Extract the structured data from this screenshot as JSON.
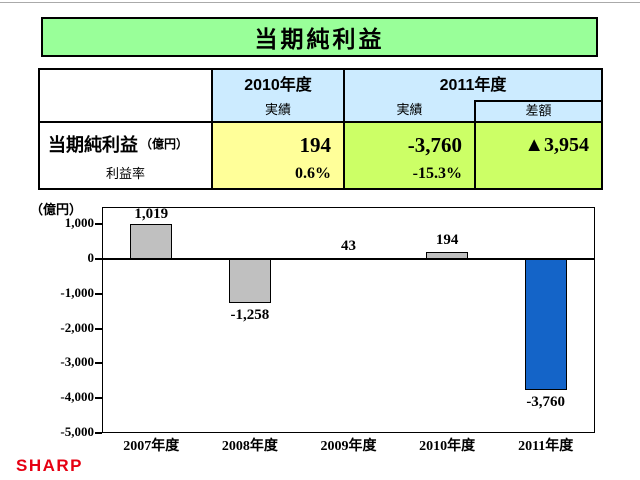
{
  "title": {
    "text": "当期純利益"
  },
  "table": {
    "columns": {
      "fy2010": {
        "year": "2010年度",
        "sub": "実績"
      },
      "fy2011": {
        "year": "2011年度",
        "sub_actual": "実績",
        "sub_diff": "差額"
      }
    },
    "rows": {
      "net_income": {
        "label": "当期純利益",
        "unit": "（億円）",
        "fy2010": "194",
        "fy2011": "-3,760",
        "diff": "▲3,954"
      },
      "margin": {
        "label": "利益率",
        "fy2010": "0.6%",
        "fy2011": "-15.3%",
        "diff": ""
      }
    }
  },
  "chart_data": {
    "type": "bar",
    "title": "",
    "unit_label": "（億円）",
    "categories": [
      "2007年度",
      "2008年度",
      "2009年度",
      "2010年度",
      "2011年度"
    ],
    "values": [
      1019,
      -1258,
      43,
      194,
      -3760
    ],
    "value_labels": [
      "1,019",
      "-1,258",
      "43",
      "194",
      "-3,760"
    ],
    "bar_colors": [
      "#C0C0C0",
      "#C0C0C0",
      "#C0C0C0",
      "#C0C0C0",
      "#1464C8"
    ],
    "ylim": [
      -5000,
      1500
    ],
    "yticks": [
      1000,
      0,
      -1000,
      -2000,
      -3000,
      -4000,
      -5000
    ],
    "ytick_labels": [
      "1,000",
      "0",
      "-1,000",
      "-2,000",
      "-3,000",
      "-4,000",
      "-5,000"
    ],
    "zero_line": true,
    "legend": "none",
    "grid": false
  },
  "footer": {
    "logo": "SHARP"
  },
  "colors": {
    "banner_bg": "#99FF99",
    "table_header_bg": "#CCEBFF",
    "fy2010_bg": "#FFFF99",
    "fy2011_bg": "#CCFF66",
    "bar_gray": "#C0C0C0",
    "bar_blue": "#1464C8",
    "logo_red": "#E60012"
  }
}
